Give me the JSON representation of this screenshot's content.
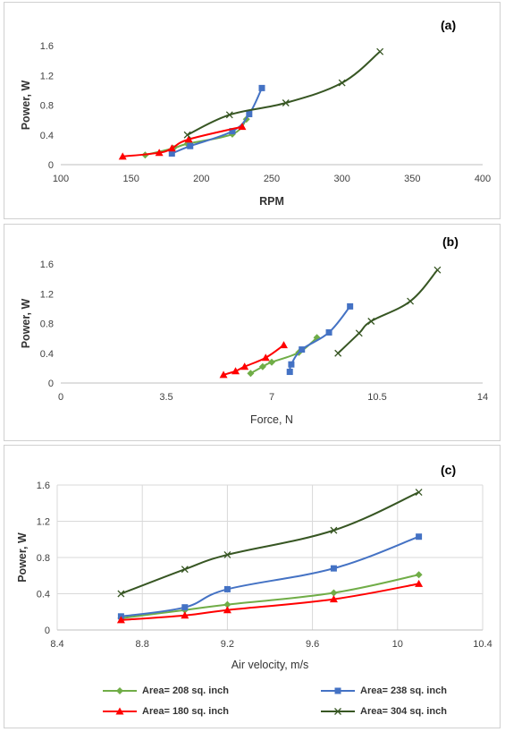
{
  "chart_data": [
    {
      "id": "a",
      "type": "line",
      "panel_label": "(a)",
      "xlabel": "RPM",
      "ylabel": "Power, W",
      "xlim": [
        100,
        400
      ],
      "ylim": [
        0,
        1.6
      ],
      "xticks": [
        100,
        150,
        200,
        250,
        300,
        350,
        400
      ],
      "yticks": [
        0,
        0.4,
        0.8,
        1.2,
        1.6
      ],
      "ytick_labels": [
        "0",
        "0.4",
        "0.8",
        "1.2",
        "1.6"
      ],
      "grid": false,
      "series": [
        {
          "key": "s208",
          "x": [
            160,
            180,
            190,
            222,
            232
          ],
          "y": [
            0.13,
            0.22,
            0.28,
            0.41,
            0.61
          ]
        },
        {
          "key": "s238",
          "x": [
            179,
            192,
            222,
            234,
            243
          ],
          "y": [
            0.15,
            0.25,
            0.45,
            0.68,
            1.03
          ]
        },
        {
          "key": "s180",
          "x": [
            144,
            170,
            179,
            191,
            229
          ],
          "y": [
            0.11,
            0.16,
            0.22,
            0.34,
            0.51
          ]
        },
        {
          "key": "s304",
          "x": [
            190,
            220,
            260,
            300,
            327
          ],
          "y": [
            0.4,
            0.67,
            0.83,
            1.1,
            1.52
          ]
        }
      ]
    },
    {
      "id": "b",
      "type": "line",
      "panel_label": "(b)",
      "xlabel": "Force, N",
      "ylabel": "Power, W",
      "xlim": [
        0,
        14
      ],
      "ylim": [
        0,
        1.6
      ],
      "xticks": [
        0,
        3.5,
        7,
        10.5,
        14
      ],
      "yticks": [
        0,
        0.4,
        0.8,
        1.2,
        1.6
      ],
      "ytick_labels": [
        "0",
        "0.4",
        "0.8",
        "1.2",
        "1.6"
      ],
      "grid": false,
      "series": [
        {
          "key": "s208",
          "x": [
            6.3,
            6.7,
            7.0,
            7.9,
            8.5
          ],
          "y": [
            0.13,
            0.22,
            0.28,
            0.41,
            0.61
          ]
        },
        {
          "key": "s238",
          "x": [
            7.6,
            7.65,
            8.0,
            8.9,
            9.6
          ],
          "y": [
            0.15,
            0.25,
            0.45,
            0.68,
            1.03
          ]
        },
        {
          "key": "s180",
          "x": [
            5.4,
            5.8,
            6.1,
            6.8,
            7.4
          ],
          "y": [
            0.11,
            0.16,
            0.22,
            0.34,
            0.51
          ]
        },
        {
          "key": "s304",
          "x": [
            9.2,
            9.9,
            10.3,
            11.6,
            12.5
          ],
          "y": [
            0.4,
            0.67,
            0.83,
            1.1,
            1.52
          ]
        }
      ]
    },
    {
      "id": "c",
      "type": "line",
      "panel_label": "(c)",
      "xlabel": "Air velocity, m/s",
      "ylabel": "Power, W",
      "xlim": [
        8.4,
        10.4
      ],
      "ylim": [
        0,
        1.6
      ],
      "xticks": [
        8.4,
        8.8,
        9.2,
        9.6,
        10,
        10.4
      ],
      "xtick_labels": [
        "8.4",
        "8.8",
        "9.2",
        "9.6",
        "10",
        "10.4"
      ],
      "yticks": [
        0,
        0.4,
        0.8,
        1.2,
        1.6
      ],
      "ytick_labels": [
        "0",
        "0.4",
        "0.8",
        "1.2",
        "1.6"
      ],
      "grid": true,
      "series": [
        {
          "key": "s208",
          "x": [
            8.7,
            9.0,
            9.2,
            9.7,
            10.1
          ],
          "y": [
            0.13,
            0.22,
            0.28,
            0.41,
            0.61
          ]
        },
        {
          "key": "s238",
          "x": [
            8.7,
            9.0,
            9.2,
            9.7,
            10.1
          ],
          "y": [
            0.15,
            0.25,
            0.45,
            0.68,
            1.03
          ]
        },
        {
          "key": "s180",
          "x": [
            8.7,
            9.0,
            9.2,
            9.7,
            10.1
          ],
          "y": [
            0.11,
            0.16,
            0.22,
            0.34,
            0.51
          ]
        },
        {
          "key": "s304",
          "x": [
            8.7,
            9.0,
            9.2,
            9.7,
            10.1
          ],
          "y": [
            0.4,
            0.67,
            0.83,
            1.1,
            1.52
          ]
        }
      ]
    }
  ],
  "legend": {
    "placement": "bottom",
    "items": [
      {
        "key": "s208",
        "name": "Area= 208 sq. inch",
        "color": "#70ad47",
        "marker": "diamond"
      },
      {
        "key": "s238",
        "name": "Area= 238 sq. inch",
        "color": "#4472c4",
        "marker": "square"
      },
      {
        "key": "s180",
        "name": "Area= 180 sq. inch",
        "color": "#ff0000",
        "marker": "triangle"
      },
      {
        "key": "s304",
        "name": "Area= 304 sq. inch",
        "color": "#375623",
        "marker": "x"
      }
    ]
  }
}
